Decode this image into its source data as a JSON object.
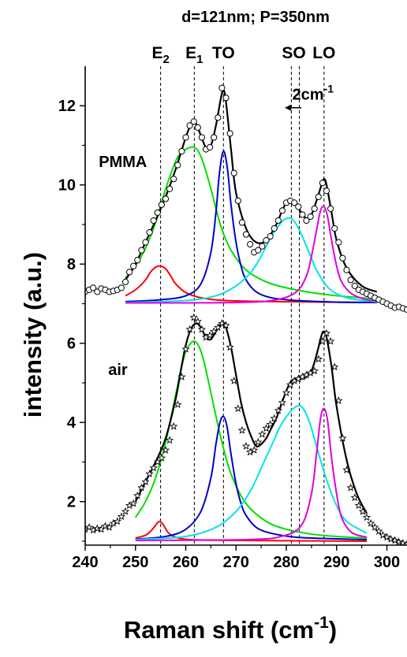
{
  "chart_data": {
    "type": "line",
    "title": "d=121nm; P=350nm",
    "xlabel": "Raman shift (cm",
    "xlabel_sup": "-1",
    "xlabel_tail": ")",
    "ylabel": "intensity (a.u.)",
    "xlim": [
      240,
      304
    ],
    "ylim": [
      0.9,
      13.0
    ],
    "xticks": [
      240,
      250,
      260,
      270,
      280,
      290,
      300
    ],
    "yticks": [
      2,
      4,
      6,
      8,
      10,
      12
    ],
    "grid": false,
    "legend": "none",
    "peak_labels": [
      {
        "base": "E",
        "sub": "2",
        "x": 255.0
      },
      {
        "base": "E",
        "sub": "1",
        "x": 261.7
      },
      {
        "base": "TO",
        "sub": "",
        "x": 267.5
      },
      {
        "base": "SO",
        "sub": "",
        "x": 281.5
      },
      {
        "base": "LO",
        "sub": "",
        "x": 287.5
      }
    ],
    "reference_lines_x": [
      255.0,
      261.7,
      267.5,
      281.0,
      282.6,
      287.5
    ],
    "annotations": [
      {
        "text": "PMMA",
        "x": 247.5,
        "y": 10.45
      },
      {
        "text": "air",
        "x": 246.5,
        "y": 5.2
      },
      {
        "text": "2cm",
        "sup": "-1",
        "x": 285.3,
        "y": 12.15
      }
    ],
    "arrow": {
      "x1": 283.0,
      "y1": 11.95,
      "x2": 279.7,
      "y2": 11.95
    },
    "series": [
      {
        "group": "PMMA",
        "kind": "fit-total",
        "color": "#000000",
        "x": [
          248,
          250,
          252,
          254,
          255,
          256,
          258,
          260,
          261,
          262,
          263,
          264,
          265,
          266,
          267,
          267.5,
          268,
          269,
          270,
          272,
          274,
          276,
          278,
          279,
          280,
          281,
          282,
          283,
          284,
          285,
          286,
          287,
          287.5,
          288,
          289,
          290,
          292,
          295,
          298
        ],
        "y": [
          7.6,
          8.0,
          8.55,
          9.1,
          9.4,
          9.7,
          10.4,
          11.2,
          11.5,
          11.55,
          11.25,
          10.95,
          11.0,
          11.5,
          12.2,
          12.4,
          12.1,
          10.9,
          9.8,
          8.9,
          8.55,
          8.6,
          9.0,
          9.3,
          9.55,
          9.6,
          9.5,
          9.3,
          9.15,
          9.25,
          9.6,
          10.0,
          10.15,
          10.0,
          9.3,
          8.6,
          7.9,
          7.45,
          7.3
        ]
      },
      {
        "group": "PMMA",
        "kind": "component",
        "name": "E2",
        "color": "#ff0000",
        "x": [
          248,
          250,
          252,
          253,
          254,
          255,
          256,
          257,
          258,
          260,
          263,
          268,
          280,
          298
        ],
        "y": [
          7.2,
          7.35,
          7.6,
          7.8,
          7.92,
          7.95,
          7.88,
          7.7,
          7.5,
          7.28,
          7.15,
          7.08,
          7.05,
          7.03
        ]
      },
      {
        "group": "PMMA",
        "kind": "component",
        "name": "E1",
        "color": "#00e000",
        "x": [
          248,
          250,
          252,
          254,
          256,
          258,
          259,
          260,
          261,
          261.7,
          262.5,
          263.5,
          265,
          267,
          269,
          272,
          276,
          280,
          285,
          290,
          298
        ],
        "y": [
          7.65,
          7.95,
          8.4,
          9.05,
          9.9,
          10.6,
          10.8,
          10.9,
          10.95,
          10.95,
          10.85,
          10.55,
          9.9,
          8.95,
          8.35,
          7.85,
          7.55,
          7.4,
          7.28,
          7.2,
          7.12
        ]
      },
      {
        "group": "PMMA",
        "kind": "component",
        "name": "TO",
        "color": "#0000cc",
        "x": [
          248,
          255,
          260,
          263,
          265,
          266,
          266.7,
          267.5,
          268.3,
          269,
          270,
          271,
          272,
          274,
          277,
          282,
          290,
          298
        ],
        "y": [
          7.05,
          7.1,
          7.2,
          7.5,
          8.3,
          9.3,
          10.3,
          10.85,
          10.4,
          9.5,
          8.55,
          7.95,
          7.6,
          7.3,
          7.15,
          7.08,
          7.04,
          7.03
        ]
      },
      {
        "group": "PMMA",
        "kind": "component",
        "name": "SO",
        "color": "#00e5e5",
        "x": [
          248,
          260,
          266,
          270,
          273,
          275,
          277,
          279,
          280,
          281,
          282,
          283,
          284,
          285,
          286,
          288,
          290,
          293,
          298
        ],
        "y": [
          7.03,
          7.08,
          7.2,
          7.45,
          7.8,
          8.2,
          8.7,
          9.05,
          9.15,
          9.15,
          9.0,
          8.75,
          8.45,
          8.15,
          7.85,
          7.45,
          7.25,
          7.12,
          7.05
        ]
      },
      {
        "group": "PMMA",
        "kind": "component",
        "name": "LO",
        "color": "#e000e0",
        "x": [
          248,
          270,
          278,
          282,
          284,
          285,
          286,
          286.8,
          287.5,
          288.2,
          289,
          290,
          291,
          293,
          296,
          298
        ],
        "y": [
          7.02,
          7.03,
          7.1,
          7.3,
          7.7,
          8.2,
          8.85,
          9.35,
          9.45,
          9.2,
          8.6,
          7.95,
          7.55,
          7.25,
          7.1,
          7.08
        ]
      },
      {
        "group": "PMMA",
        "kind": "data",
        "marker": "circle",
        "x": [
          240,
          240.8,
          241.6,
          242.4,
          243.2,
          244,
          244.8,
          245.6,
          246.4,
          247.2,
          248,
          248.8,
          249.6,
          250.4,
          251.2,
          252,
          252.8,
          253.6,
          254.4,
          255.2,
          256,
          256.8,
          257.6,
          258.4,
          259.2,
          260,
          260.8,
          261.6,
          262.4,
          263.2,
          264,
          264.8,
          265.6,
          266.4,
          267.2,
          268,
          268.8,
          269.6,
          270.4,
          271.2,
          272,
          272.8,
          273.6,
          274.4,
          275.2,
          276,
          276.8,
          277.6,
          278.4,
          279.2,
          280,
          280.8,
          281.6,
          282.4,
          283.2,
          284,
          284.8,
          285.6,
          286.4,
          287.2,
          288,
          288.8,
          289.6,
          290.4,
          291.2,
          292,
          292.8,
          293.6,
          294.4,
          295.2,
          296,
          296.8,
          297.6,
          298.4,
          299.2,
          300,
          300.8,
          301.6,
          302.4,
          303.2,
          304
        ],
        "y": [
          7.3,
          7.35,
          7.4,
          7.3,
          7.38,
          7.35,
          7.3,
          7.32,
          7.35,
          7.4,
          7.55,
          7.8,
          7.95,
          8.1,
          8.35,
          8.55,
          8.8,
          9.1,
          9.3,
          9.5,
          9.65,
          9.9,
          10.15,
          10.5,
          10.85,
          11.2,
          11.5,
          11.6,
          11.45,
          11.2,
          10.9,
          10.95,
          11.2,
          11.7,
          12.45,
          12.2,
          11.3,
          10.3,
          9.6,
          9.05,
          8.75,
          8.5,
          8.3,
          8.35,
          8.45,
          8.6,
          8.7,
          8.9,
          9.1,
          9.35,
          9.55,
          9.6,
          9.55,
          9.45,
          9.25,
          9.1,
          9.2,
          9.4,
          9.7,
          10.05,
          9.85,
          9.4,
          8.9,
          8.55,
          8.15,
          7.85,
          7.6,
          7.45,
          7.35,
          7.3,
          7.25,
          7.2,
          7.15,
          7.1,
          7.05,
          7.0,
          6.95,
          6.9,
          6.92,
          6.88,
          6.85
        ]
      },
      {
        "group": "air",
        "kind": "fit-total",
        "color": "#000000",
        "x": [
          250,
          252,
          254,
          256,
          258,
          259,
          260,
          261,
          262,
          263,
          264,
          265,
          266,
          267,
          267.5,
          268,
          269,
          270,
          271,
          272,
          273,
          274,
          275,
          276,
          277,
          278,
          279,
          280,
          281,
          282,
          283,
          284,
          285,
          286,
          287,
          287.5,
          288,
          289,
          290,
          292,
          294,
          296
        ],
        "y": [
          2.0,
          2.5,
          3.0,
          3.6,
          4.6,
          5.3,
          5.95,
          6.35,
          6.5,
          6.4,
          6.15,
          6.1,
          6.3,
          6.5,
          6.5,
          6.4,
          5.9,
          5.2,
          4.5,
          4.0,
          3.65,
          3.4,
          3.45,
          3.6,
          3.85,
          4.1,
          4.45,
          4.8,
          5.05,
          5.1,
          5.1,
          5.15,
          5.3,
          5.7,
          6.2,
          6.3,
          6.15,
          5.4,
          4.4,
          3.05,
          2.2,
          1.7
        ]
      },
      {
        "group": "air",
        "kind": "component",
        "name": "E2",
        "color": "#ff0000",
        "x": [
          250,
          252,
          253,
          254,
          254.7,
          255.5,
          256.5,
          258,
          261,
          270,
          296
        ],
        "y": [
          1.08,
          1.15,
          1.25,
          1.4,
          1.5,
          1.42,
          1.22,
          1.1,
          1.04,
          1.02,
          1.0
        ]
      },
      {
        "group": "air",
        "kind": "component",
        "name": "E1",
        "color": "#00e000",
        "x": [
          250,
          252,
          254,
          256,
          258,
          259,
          260,
          261,
          261.7,
          262.5,
          263.5,
          265,
          267,
          269,
          272,
          276,
          280,
          285,
          290,
          296
        ],
        "y": [
          1.6,
          2.0,
          2.6,
          3.5,
          4.7,
          5.3,
          5.8,
          6.0,
          6.05,
          5.95,
          5.6,
          4.75,
          3.6,
          2.7,
          1.95,
          1.5,
          1.3,
          1.18,
          1.12,
          1.08
        ]
      },
      {
        "group": "air",
        "kind": "component",
        "name": "TO",
        "color": "#0000cc",
        "x": [
          250,
          256,
          260,
          263,
          265,
          266,
          266.8,
          267.5,
          268.2,
          269,
          270,
          271,
          272,
          274,
          277,
          282,
          290,
          296
        ],
        "y": [
          1.05,
          1.12,
          1.3,
          1.75,
          2.6,
          3.45,
          4.0,
          4.15,
          3.9,
          3.2,
          2.45,
          1.95,
          1.65,
          1.35,
          1.2,
          1.1,
          1.06,
          1.04
        ]
      },
      {
        "group": "air",
        "kind": "component",
        "name": "SO",
        "color": "#00e5e5",
        "x": [
          250,
          260,
          266,
          270,
          273,
          275,
          277,
          279,
          281,
          282,
          282.6,
          283.2,
          284,
          285,
          286,
          288,
          290,
          292,
          296
        ],
        "y": [
          1.04,
          1.12,
          1.35,
          1.75,
          2.3,
          2.85,
          3.4,
          3.95,
          4.3,
          4.4,
          4.42,
          4.38,
          4.2,
          3.85,
          3.4,
          2.55,
          1.9,
          1.5,
          1.2
        ]
      },
      {
        "group": "air",
        "kind": "component",
        "name": "LO",
        "color": "#e000e0",
        "x": [
          250,
          272,
          279,
          283,
          285,
          286,
          286.8,
          287.5,
          288.2,
          289,
          290,
          291,
          293,
          296
        ],
        "y": [
          1.02,
          1.04,
          1.12,
          1.4,
          2.2,
          3.2,
          4.1,
          4.35,
          4.05,
          3.1,
          2.2,
          1.6,
          1.22,
          1.1
        ]
      },
      {
        "group": "air",
        "kind": "data",
        "marker": "star",
        "x": [
          240,
          240.8,
          241.6,
          242.4,
          243.2,
          244,
          244.8,
          245.6,
          246.4,
          247.2,
          248,
          248.8,
          249.6,
          250.4,
          251.2,
          252,
          252.8,
          253.6,
          254.4,
          255.2,
          256,
          256.8,
          257.6,
          258.4,
          259.2,
          260,
          260.8,
          261.6,
          262.4,
          263.2,
          264,
          264.8,
          265.6,
          266.4,
          267.2,
          268,
          268.8,
          269.6,
          270.4,
          271.2,
          272,
          272.8,
          273.6,
          274.4,
          275.2,
          276,
          276.8,
          277.6,
          278.4,
          279.2,
          280,
          280.8,
          281.6,
          282.4,
          283.2,
          284,
          284.8,
          285.6,
          286.4,
          287.2,
          288,
          288.8,
          289.6,
          290.4,
          291.2,
          292,
          292.8,
          293.6,
          294.4,
          295.2,
          296,
          296.8,
          297.6,
          298.4,
          299.2,
          300,
          300.8,
          301.6,
          302.4,
          303.2,
          304
        ],
        "y": [
          1.3,
          1.35,
          1.28,
          1.32,
          1.3,
          1.38,
          1.35,
          1.45,
          1.5,
          1.62,
          1.75,
          1.9,
          1.95,
          2.15,
          2.35,
          2.5,
          2.7,
          2.85,
          3.0,
          3.1,
          3.3,
          3.55,
          3.9,
          4.45,
          5.15,
          5.85,
          6.35,
          6.65,
          6.55,
          6.35,
          6.15,
          6.2,
          6.3,
          6.4,
          6.5,
          6.45,
          5.9,
          5.05,
          4.35,
          3.8,
          3.4,
          3.25,
          3.3,
          3.5,
          3.7,
          3.85,
          3.95,
          4.1,
          4.3,
          4.5,
          4.75,
          4.95,
          5.05,
          5.1,
          5.15,
          5.2,
          5.25,
          5.3,
          5.6,
          6.05,
          6.25,
          6.05,
          5.4,
          4.55,
          3.6,
          2.8,
          2.35,
          2.1,
          1.9,
          1.75,
          1.6,
          1.45,
          1.35,
          1.25,
          1.15,
          1.1,
          1.05,
          1.02,
          0.98,
          0.95,
          0.92
        ]
      }
    ]
  }
}
